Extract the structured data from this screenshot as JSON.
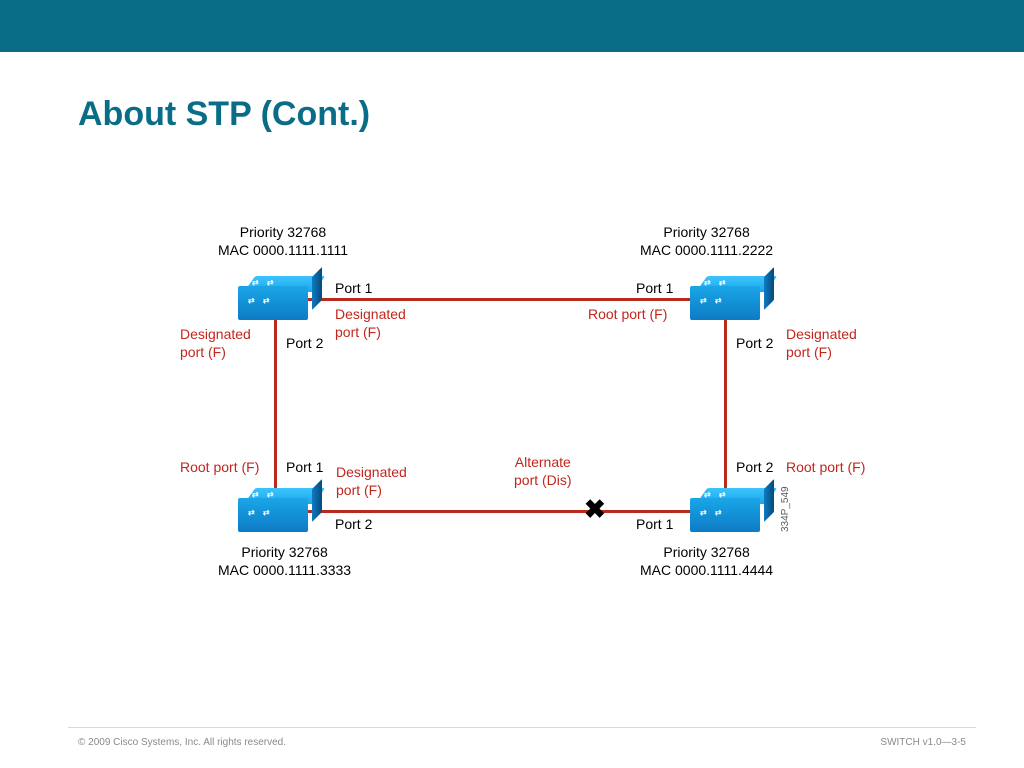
{
  "slide": {
    "title": "About STP (Cont.)",
    "footer_copyright": "© 2009 Cisco Systems, Inc. All rights reserved.",
    "footer_right": "SWITCH v1.0—3-5",
    "diagram_id": "334P_549"
  },
  "topology": {
    "linkColor": "#b82b1a",
    "textColor": "#000000",
    "redTextColor": "#c2261d",
    "switches": [
      {
        "pos": "tl",
        "priority": "Priority 32768",
        "mac": "MAC 0000.1111.1111"
      },
      {
        "pos": "tr",
        "priority": "Priority 32768",
        "mac": "MAC 0000.1111.2222"
      },
      {
        "pos": "bl",
        "priority": "Priority 32768",
        "mac": "MAC 0000.1111.3333"
      },
      {
        "pos": "br",
        "priority": "Priority 32768",
        "mac": "MAC 0000.1111.4444"
      }
    ],
    "portLabels": {
      "tl_p1": "Port 1",
      "tl_p1_role": "Designated\nport (F)",
      "tl_p2": "Port 2",
      "tl_p2_role": "Designated\nport (F)",
      "tr_p1": "Port 1",
      "tr_p1_role": "Root port (F)",
      "tr_p2": "Port 2",
      "tr_p2_role": "Designated\nport (F)",
      "bl_p1": "Port 1",
      "bl_p1_role": "Root port (F)",
      "bl_p2": "Port 2",
      "bl_p2_role": "Designated\nport (F)",
      "br_p1": "Port 1",
      "br_p1_role": "Root port (F)",
      "br_p2": "Port 2",
      "br_p2_role": "Alternate\nport (Dis)"
    }
  }
}
